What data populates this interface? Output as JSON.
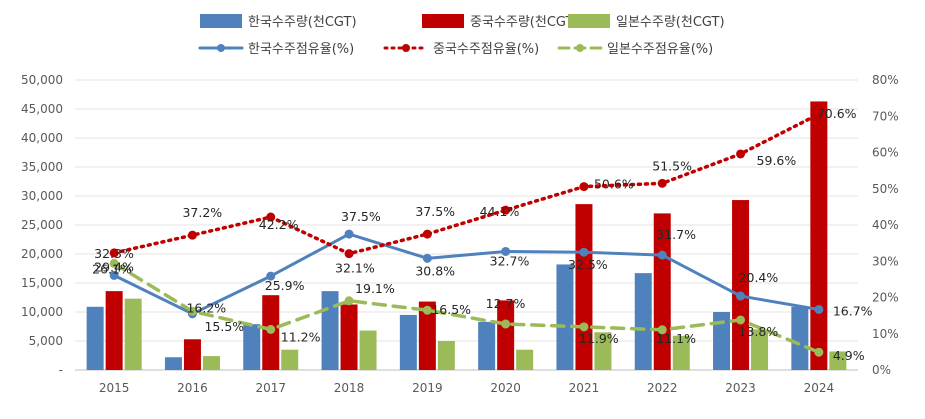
{
  "chart_data": {
    "type": "bar+line",
    "categories": [
      "2015",
      "2016",
      "2017",
      "2018",
      "2019",
      "2020",
      "2021",
      "2022",
      "2023",
      "2024"
    ],
    "bar_series": [
      {
        "name": "한국수주량(천CGT)",
        "color": "#4F81BD",
        "values": [
          10900,
          2200,
          7900,
          13600,
          9500,
          8300,
          18200,
          16700,
          10000,
          10900
        ]
      },
      {
        "name": "중국수주량(천CGT)",
        "color": "#C00000",
        "values": [
          13600,
          5300,
          12900,
          11300,
          11800,
          12000,
          28600,
          27000,
          29300,
          46300
        ]
      },
      {
        "name": "일본수주량(천CGT)",
        "color": "#9BBB59",
        "values": [
          12300,
          2400,
          3500,
          6800,
          5000,
          3500,
          6500,
          5900,
          7000,
          3200
        ]
      }
    ],
    "line_series": [
      {
        "name": "한국수주점유율(%)",
        "color": "#4F81BD",
        "style": "solid",
        "values": [
          26.1,
          15.5,
          25.9,
          37.5,
          30.8,
          32.7,
          32.5,
          31.7,
          20.4,
          16.7
        ],
        "labels": [
          "26.1%",
          "15.5%",
          "25.9%",
          "37.5%",
          "30.8%",
          "32.7%",
          "32.5%",
          "31.7%",
          "20.4%",
          "16.7%"
        ]
      },
      {
        "name": "중국수주점유율(%)",
        "color": "#C00000",
        "style": "dotted",
        "values": [
          32.3,
          37.2,
          42.2,
          32.1,
          37.5,
          44.1,
          50.6,
          51.5,
          59.6,
          70.6
        ],
        "labels": [
          "32.3%",
          "37.2%",
          "42.2%",
          "32.1%",
          "37.5%",
          "44.1%",
          "50.6%",
          "51.5%",
          "59.6%",
          "70.6%"
        ]
      },
      {
        "name": "일본수주점유율(%)",
        "color": "#9BBB59",
        "style": "dashed",
        "values": [
          29.4,
          16.2,
          11.2,
          19.1,
          16.5,
          12.7,
          11.9,
          11.1,
          13.8,
          4.9
        ],
        "labels": [
          "29.4%",
          "16.2%",
          "11.2%",
          "19.1%",
          "16.5%",
          "12.7%",
          "11.9%",
          "11.1%",
          "13.8%",
          "4.9%"
        ]
      }
    ],
    "y_left": {
      "min": 0,
      "max": 50000,
      "ticks": [
        "-",
        "5,000",
        "10,000",
        "15,000",
        "20,000",
        "25,000",
        "30,000",
        "35,000",
        "40,000",
        "45,000",
        "50,000"
      ]
    },
    "y_right": {
      "min": 0,
      "max": 80,
      "ticks": [
        "0%",
        "10%",
        "20%",
        "30%",
        "40%",
        "50%",
        "60%",
        "70%",
        "80%"
      ]
    },
    "grid": true,
    "legend_position": "top"
  }
}
